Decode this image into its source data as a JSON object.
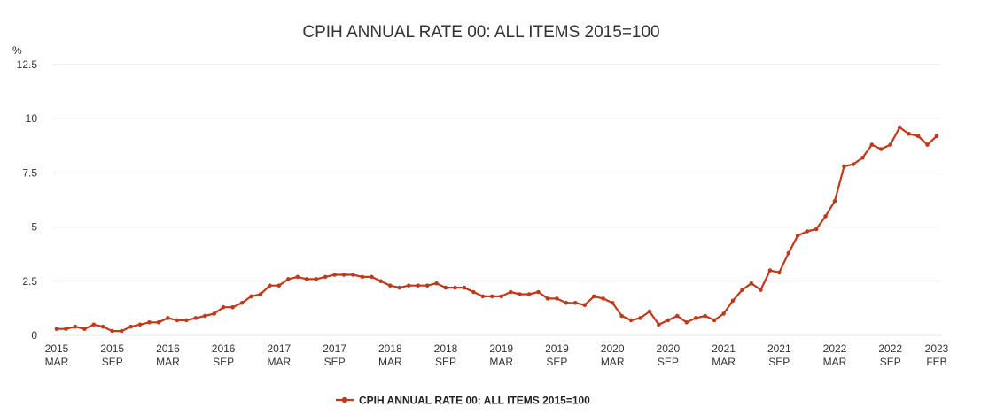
{
  "chart_data": {
    "type": "line",
    "title": "CPIH ANNUAL RATE 00: ALL ITEMS 2015=100",
    "ylabel": "%",
    "ylim": [
      0,
      12.5
    ],
    "yticks": [
      "0",
      "2.5",
      "5",
      "7.5",
      "10",
      "12.5"
    ],
    "xticks": [
      {
        "top": "2015",
        "bottom": "MAR"
      },
      {
        "top": "2015",
        "bottom": "SEP"
      },
      {
        "top": "2016",
        "bottom": "MAR"
      },
      {
        "top": "2016",
        "bottom": "SEP"
      },
      {
        "top": "2017",
        "bottom": "MAR"
      },
      {
        "top": "2017",
        "bottom": "SEP"
      },
      {
        "top": "2018",
        "bottom": "MAR"
      },
      {
        "top": "2018",
        "bottom": "SEP"
      },
      {
        "top": "2019",
        "bottom": "MAR"
      },
      {
        "top": "2019",
        "bottom": "SEP"
      },
      {
        "top": "2020",
        "bottom": "MAR"
      },
      {
        "top": "2020",
        "bottom": "SEP"
      },
      {
        "top": "2021",
        "bottom": "MAR"
      },
      {
        "top": "2021",
        "bottom": "SEP"
      },
      {
        "top": "2022",
        "bottom": "MAR"
      },
      {
        "top": "2022",
        "bottom": "SEP"
      },
      {
        "top": "2023",
        "bottom": "FEB"
      }
    ],
    "grid": true,
    "legend_position": "bottom-center",
    "color": "#c0391b",
    "series": [
      {
        "name": "CPIH ANNUAL RATE 00: ALL ITEMS 2015=100",
        "values": [
          0.3,
          0.3,
          0.4,
          0.3,
          0.5,
          0.4,
          0.2,
          0.2,
          0.4,
          0.5,
          0.6,
          0.6,
          0.8,
          0.7,
          0.7,
          0.8,
          0.9,
          1.0,
          1.3,
          1.3,
          1.5,
          1.8,
          1.9,
          2.3,
          2.3,
          2.6,
          2.7,
          2.6,
          2.6,
          2.7,
          2.8,
          2.8,
          2.8,
          2.7,
          2.7,
          2.5,
          2.3,
          2.2,
          2.3,
          2.3,
          2.3,
          2.4,
          2.2,
          2.2,
          2.2,
          2.0,
          1.8,
          1.8,
          1.8,
          2.0,
          1.9,
          1.9,
          2.0,
          1.7,
          1.7,
          1.5,
          1.5,
          1.4,
          1.8,
          1.7,
          1.5,
          0.9,
          0.7,
          0.8,
          1.1,
          0.5,
          0.7,
          0.9,
          0.6,
          0.8,
          0.9,
          0.7,
          1.0,
          1.6,
          2.1,
          2.4,
          2.1,
          3.0,
          2.9,
          3.8,
          4.6,
          4.8,
          4.9,
          5.5,
          6.2,
          7.8,
          7.9,
          8.2,
          8.8,
          8.6,
          8.8,
          9.6,
          9.3,
          9.2,
          8.8,
          9.2
        ]
      }
    ]
  }
}
